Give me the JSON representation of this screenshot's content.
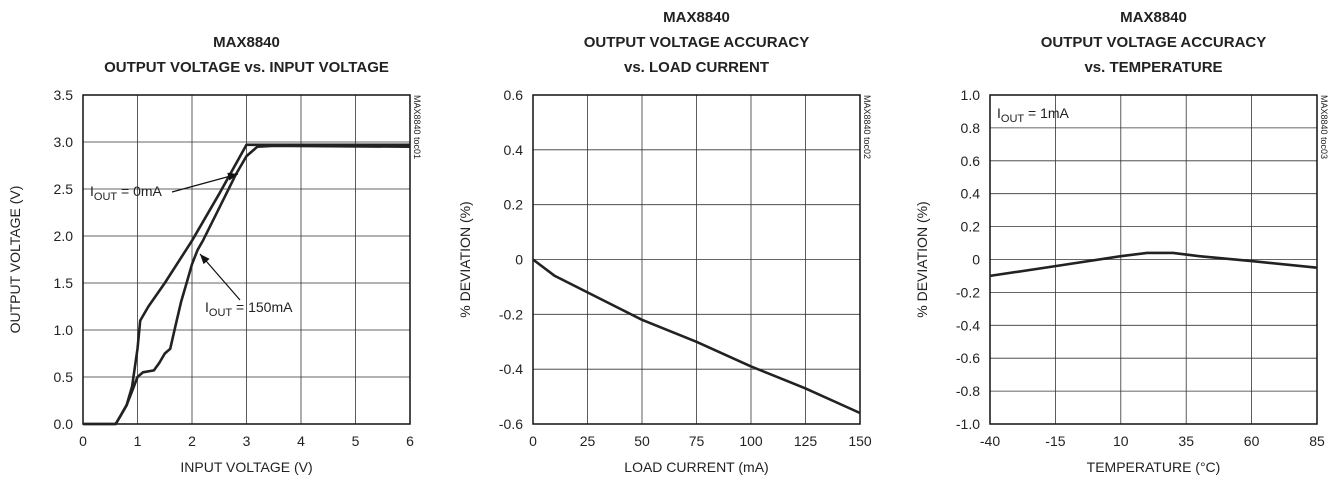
{
  "chart_data": [
    {
      "type": "line",
      "title": [
        "MAX8840",
        "OUTPUT VOLTAGE vs. INPUT VOLTAGE"
      ],
      "side_label": "MAX8840 toc01",
      "x_label": "INPUT VOLTAGE (V)",
      "y_label": "OUTPUT VOLTAGE (V)",
      "xlim": [
        0,
        6
      ],
      "xticks": [
        0,
        1,
        2,
        3,
        4,
        5,
        6
      ],
      "ylim": [
        0,
        3.5
      ],
      "yticks": [
        {
          "value": 0,
          "label": "0.0"
        },
        0.5,
        {
          "value": 1,
          "label": "1.0"
        },
        1.5,
        {
          "value": 2,
          "label": "2.0"
        },
        2.5,
        {
          "value": 3,
          "label": "3.0"
        },
        3.5
      ],
      "grid": true,
      "series": [
        {
          "color": "#222222",
          "x": [
            0,
            0.6,
            0.7,
            0.8,
            0.9,
            1.0,
            1.05,
            1.2,
            1.5,
            2.0,
            2.5,
            3.0,
            6.0
          ],
          "values": [
            0,
            0,
            0.1,
            0.2,
            0.4,
            0.8,
            1.1,
            1.25,
            1.5,
            1.95,
            2.45,
            2.97,
            2.97
          ]
        },
        {
          "color": "#222222",
          "x": [
            0,
            0.6,
            0.7,
            0.8,
            0.9,
            1.0,
            1.1,
            1.3,
            1.4,
            1.5,
            1.6,
            1.7,
            1.8,
            1.9,
            2.0,
            2.1,
            2.2,
            2.5,
            2.8,
            3.0,
            3.2,
            3.5,
            6.0
          ],
          "values": [
            0,
            0,
            0.1,
            0.2,
            0.35,
            0.5,
            0.55,
            0.57,
            0.65,
            0.75,
            0.8,
            1.05,
            1.3,
            1.5,
            1.7,
            1.85,
            1.95,
            2.3,
            2.65,
            2.85,
            2.95,
            2.96,
            2.95
          ]
        }
      ],
      "annotations": [
        {
          "main": "I",
          "sub": "OUT",
          "tail": " = 0mA"
        },
        {
          "main": "I",
          "sub": "OUT",
          "tail": " = 150mA"
        }
      ]
    },
    {
      "type": "line",
      "title": [
        "MAX8840",
        "OUTPUT VOLTAGE ACCURACY",
        "vs. LOAD CURRENT"
      ],
      "side_label": "MAX8840 toc02",
      "x_label": "LOAD CURRENT (mA)",
      "y_label": "% DEVIATION (%)",
      "xlim": [
        0,
        150
      ],
      "xticks": [
        0,
        25,
        50,
        75,
        100,
        125,
        150
      ],
      "ylim": [
        -0.6,
        0.6
      ],
      "yticks": [
        -0.6,
        -0.4,
        -0.2,
        0,
        0.2,
        0.4,
        0.6
      ],
      "grid": true,
      "series": [
        {
          "color": "#222222",
          "x": [
            0,
            10,
            25,
            50,
            75,
            100,
            125,
            150
          ],
          "values": [
            0,
            -0.06,
            -0.12,
            -0.22,
            -0.3,
            -0.39,
            -0.47,
            -0.56
          ]
        }
      ],
      "annotations": []
    },
    {
      "type": "line",
      "title": [
        "MAX8840",
        "OUTPUT VOLTAGE ACCURACY",
        "vs. TEMPERATURE"
      ],
      "side_label": "MAX8840 toc03",
      "x_label": "TEMPERATURE (°C)",
      "y_label": "% DEVIATION (%)",
      "xlim": [
        -40,
        85
      ],
      "xticks": [
        -40,
        -15,
        10,
        35,
        60,
        85
      ],
      "ylim": [
        -1,
        1
      ],
      "yticks": [
        {
          "value": -1,
          "label": "-1.0"
        },
        -0.8,
        -0.6,
        -0.4,
        -0.2,
        0,
        0.2,
        0.4,
        0.6,
        0.8,
        {
          "value": 1,
          "label": "1.0"
        }
      ],
      "grid": true,
      "series": [
        {
          "color": "#222222",
          "x": [
            -40,
            -15,
            10,
            20,
            30,
            40,
            60,
            85
          ],
          "values": [
            -0.1,
            -0.04,
            0.02,
            0.04,
            0.04,
            0.02,
            -0.01,
            -0.05
          ]
        }
      ],
      "annotations": [
        {
          "main": "I",
          "sub": "OUT",
          "tail": " = 1mA"
        }
      ]
    }
  ]
}
